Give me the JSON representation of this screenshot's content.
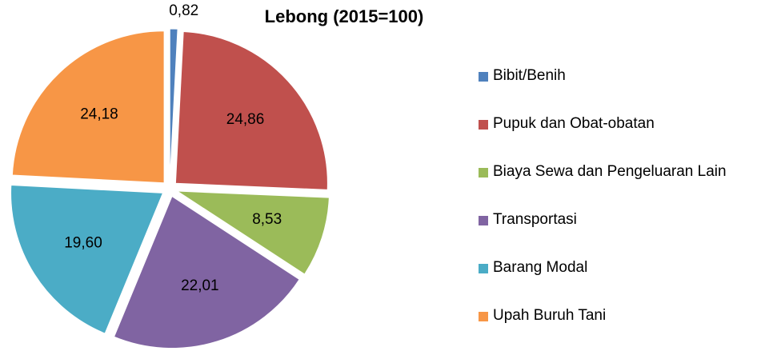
{
  "chart_data": {
    "type": "pie",
    "title": "Lebong (2015=100)",
    "categories": [
      "Bibit/Benih",
      "Pupuk dan Obat-obatan",
      "Biaya Sewa dan Pengeluaran Lain",
      "Transportasi",
      "Barang Modal",
      "Upah Buruh Tani"
    ],
    "values": [
      0.82,
      24.86,
      8.53,
      22.01,
      19.6,
      24.18
    ],
    "value_labels": [
      "0,82",
      "24,86",
      "8,53",
      "22,01",
      "19,60",
      "24,18"
    ],
    "colors": [
      "#4f81bd",
      "#c0504d",
      "#9bbb59",
      "#8064a2",
      "#4bacc6",
      "#f79646"
    ],
    "legend": "right"
  }
}
